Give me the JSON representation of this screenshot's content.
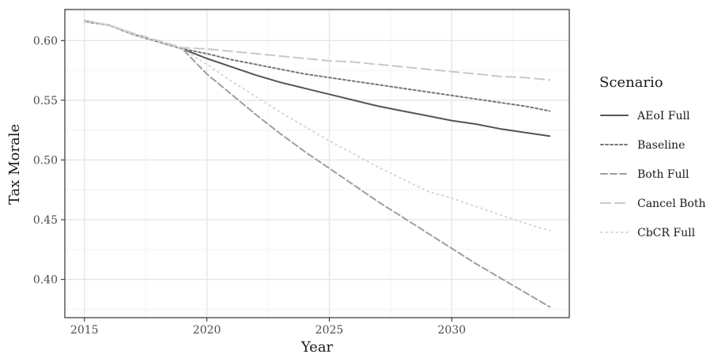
{
  "chart_data": {
    "type": "line",
    "title": "",
    "xlabel": "Year",
    "ylabel": "Tax Morale",
    "xlim": [
      2014.2,
      2034.8
    ],
    "ylim": [
      0.368,
      0.626
    ],
    "x_ticks": [
      2015,
      2020,
      2025,
      2030
    ],
    "y_ticks": [
      0.4,
      0.45,
      0.5,
      0.55,
      0.6
    ],
    "x_tick_labels": [
      "2015",
      "2020",
      "2025",
      "2030"
    ],
    "y_tick_labels": [
      "0.40",
      "0.45",
      "0.50",
      "0.55",
      "0.60"
    ],
    "grid": true,
    "legend": {
      "title": "Scenario",
      "position": "right"
    },
    "x": [
      2015,
      2016,
      2017,
      2018,
      2019,
      2020,
      2021,
      2022,
      2023,
      2024,
      2025,
      2026,
      2027,
      2028,
      2029,
      2030,
      2031,
      2032,
      2033,
      2034
    ],
    "series": [
      {
        "name": "AEoI Full",
        "color": "#555555",
        "dash": "none",
        "values": [
          0.616,
          0.613,
          0.605,
          0.599,
          0.593,
          0.585,
          0.578,
          0.571,
          0.565,
          0.56,
          0.555,
          0.55,
          0.545,
          0.541,
          0.537,
          0.533,
          0.53,
          0.526,
          0.523,
          0.52
        ]
      },
      {
        "name": "Baseline",
        "color": "#777777",
        "dash": "3,3",
        "values": [
          0.616,
          0.613,
          0.605,
          0.599,
          0.593,
          0.589,
          0.584,
          0.58,
          0.576,
          0.572,
          0.569,
          0.566,
          0.563,
          0.56,
          0.557,
          0.554,
          0.551,
          0.548,
          0.545,
          0.541
        ]
      },
      {
        "name": "Both Full",
        "color": "#9e9e9e",
        "dash": "8,4",
        "values": [
          0.616,
          0.613,
          0.605,
          0.599,
          0.593,
          0.572,
          0.555,
          0.538,
          0.522,
          0.507,
          0.493,
          0.479,
          0.465,
          0.452,
          0.439,
          0.426,
          0.413,
          0.401,
          0.389,
          0.377
        ]
      },
      {
        "name": "Cancel Both",
        "color": "#c8c8c8",
        "dash": "12,6",
        "values": [
          0.617,
          0.613,
          0.606,
          0.6,
          0.594,
          0.593,
          0.591,
          0.589,
          0.587,
          0.585,
          0.583,
          0.582,
          0.58,
          0.578,
          0.576,
          0.574,
          0.572,
          0.57,
          0.569,
          0.567
        ]
      },
      {
        "name": "CbCR Full",
        "color": "#d6d6d6",
        "dash": "1.5,5",
        "values": [
          0.616,
          0.613,
          0.605,
          0.599,
          0.593,
          0.58,
          0.566,
          0.553,
          0.54,
          0.528,
          0.516,
          0.505,
          0.494,
          0.484,
          0.474,
          0.468,
          0.461,
          0.454,
          0.447,
          0.441
        ]
      }
    ]
  }
}
